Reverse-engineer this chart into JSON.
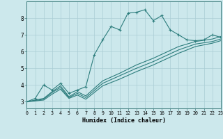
{
  "title": "",
  "xlabel": "Humidex (Indice chaleur)",
  "bg_color": "#cce8ec",
  "grid_color": "#aacdd4",
  "line_color": "#2d7d7d",
  "xlim": [
    0,
    23
  ],
  "ylim": [
    2.6,
    9.0
  ],
  "xticks": [
    0,
    1,
    2,
    3,
    4,
    5,
    6,
    7,
    8,
    9,
    10,
    11,
    12,
    13,
    14,
    15,
    16,
    17,
    18,
    19,
    20,
    21,
    22,
    23
  ],
  "yticks": [
    3,
    4,
    5,
    6,
    7,
    8
  ],
  "series1": [
    [
      0,
      3.0
    ],
    [
      1,
      3.2
    ],
    [
      2,
      4.0
    ],
    [
      3,
      3.7
    ],
    [
      4,
      4.1
    ],
    [
      5,
      3.5
    ],
    [
      6,
      3.7
    ],
    [
      7,
      3.9
    ],
    [
      8,
      5.8
    ],
    [
      9,
      6.7
    ],
    [
      10,
      7.5
    ],
    [
      11,
      7.3
    ],
    [
      12,
      8.3
    ],
    [
      13,
      8.35
    ],
    [
      14,
      8.5
    ],
    [
      15,
      7.85
    ],
    [
      16,
      8.15
    ],
    [
      17,
      7.3
    ],
    [
      18,
      7.0
    ],
    [
      19,
      6.7
    ],
    [
      20,
      6.65
    ],
    [
      21,
      6.7
    ],
    [
      22,
      7.0
    ],
    [
      23,
      6.85
    ]
  ],
  "series2": [
    [
      0,
      3.0
    ],
    [
      2,
      3.2
    ],
    [
      3,
      3.6
    ],
    [
      4,
      3.95
    ],
    [
      5,
      3.3
    ],
    [
      6,
      3.6
    ],
    [
      7,
      3.35
    ],
    [
      9,
      4.25
    ],
    [
      11,
      4.7
    ],
    [
      13,
      5.2
    ],
    [
      15,
      5.6
    ],
    [
      18,
      6.3
    ],
    [
      20,
      6.6
    ],
    [
      22,
      6.75
    ],
    [
      23,
      6.9
    ]
  ],
  "series3": [
    [
      0,
      3.0
    ],
    [
      2,
      3.15
    ],
    [
      3,
      3.55
    ],
    [
      4,
      3.85
    ],
    [
      5,
      3.25
    ],
    [
      6,
      3.5
    ],
    [
      7,
      3.25
    ],
    [
      9,
      4.1
    ],
    [
      11,
      4.55
    ],
    [
      13,
      5.0
    ],
    [
      15,
      5.4
    ],
    [
      18,
      6.1
    ],
    [
      20,
      6.45
    ],
    [
      22,
      6.6
    ],
    [
      23,
      6.75
    ]
  ],
  "series4": [
    [
      0,
      3.0
    ],
    [
      2,
      3.1
    ],
    [
      3,
      3.45
    ],
    [
      4,
      3.75
    ],
    [
      5,
      3.2
    ],
    [
      6,
      3.4
    ],
    [
      7,
      3.15
    ],
    [
      9,
      3.95
    ],
    [
      11,
      4.35
    ],
    [
      13,
      4.8
    ],
    [
      15,
      5.2
    ],
    [
      18,
      5.9
    ],
    [
      20,
      6.3
    ],
    [
      22,
      6.5
    ],
    [
      23,
      6.65
    ]
  ]
}
